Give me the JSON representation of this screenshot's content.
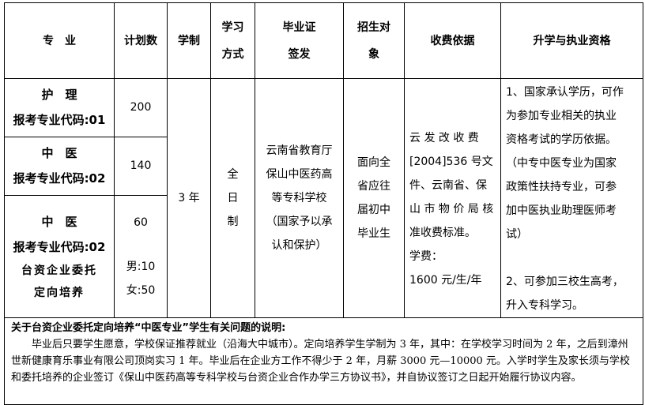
{
  "headers": [
    "专　业",
    "计划数",
    "学制",
    "学习方式",
    "毕业证签发",
    "招生对象",
    "收费依据",
    "升学与执业资格"
  ],
  "header_lines": {
    "study_mode": [
      "学习",
      "方式"
    ],
    "certificate": [
      "毕业证",
      "签发"
    ],
    "target": [
      "招生对",
      "象"
    ]
  },
  "rows": [
    {
      "major": "护　理",
      "code": "报考专业代码:01",
      "plan": "200"
    },
    {
      "major": "中　医",
      "code": "报考专业代码:02",
      "plan": "140"
    },
    {
      "major": "中　医",
      "code": "报考专业代码:02",
      "special": [
        "台资企业委托",
        "定向培养"
      ],
      "plan": "60",
      "male": "男:10",
      "female": "女:50"
    }
  ],
  "duration": "3 年",
  "mode": [
    "全",
    "日",
    "制"
  ],
  "certificate": [
    "云南省教育厅",
    "保山中医药高",
    "等专科学校",
    "（国家予以承",
    "认和保护）"
  ],
  "target": [
    "面向全",
    "省应往",
    "届初中",
    "毕业生"
  ],
  "fee": [
    "云 发 改 收 费",
    "[2004]536 号文",
    "件、云南省、保",
    "山 市 物 价 局 核",
    "准收费标准。",
    "学费：",
    "1600 元/生/年"
  ],
  "qualification": [
    "1、国家承认学历，可作",
    "为参加专业相关的执业",
    "资格考试的学历依据。",
    "（中专中医专业为国家",
    "政策性扶持专业，可参",
    "加中医执业助理医师考",
    "试）",
    "",
    "2、可参加三校生高考，",
    "升入专科学习。"
  ],
  "note": {
    "title": "关于台资企业委托定向培养“中医专业”学生有关问题的说明:",
    "body": "毕业后只要学生愿意，学校保证推荐就业（沿海大中城市）。定向培养学生学制为 3 年，其中：在学校学习时间为 2 年，之后到漳州世新健康育乐事业有限公司顶岗实习 1 年。毕业后在企业方工作不得少于 2 年，月薪 3000 元—10000 元。入学时学生及家长须与学校和委托培养的企业签订《保山中医药高等专科学校与台资企业合作办学三方协议书》，并自协议签订之日起开始履行协议内容。"
  }
}
